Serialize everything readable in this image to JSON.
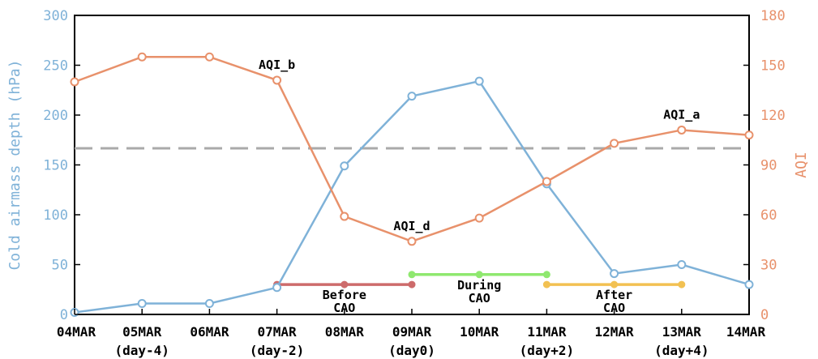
{
  "chart_data": {
    "type": "line",
    "categories": [
      "04MAR",
      "05MAR",
      "06MAR",
      "07MAR",
      "08MAR",
      "09MAR",
      "10MAR",
      "11MAR",
      "12MAR",
      "13MAR",
      "14MAR"
    ],
    "x_sublabels": [
      "",
      "(day-4)",
      "",
      "(day-2)",
      "",
      "(day0)",
      "",
      "(day+2)",
      "",
      "(day+4)",
      ""
    ],
    "ylabel_left": "Cold airmass depth (hPa)",
    "ylabel_right": "AQI",
    "ylim_left": [
      0,
      300
    ],
    "yticks_left": [
      0,
      50,
      100,
      150,
      200,
      250,
      300
    ],
    "ylim_right": [
      0,
      180
    ],
    "yticks_right": [
      0,
      30,
      60,
      90,
      120,
      150,
      180
    ],
    "colors": {
      "depth": "#7fb2d8",
      "aqi": "#e8916b",
      "threshold": "#aaaaaa",
      "before": "#cd6b6b",
      "during": "#8fe86f",
      "after": "#f2c152"
    },
    "series": [
      {
        "key": "depth",
        "axis": "left",
        "values": [
          2,
          11,
          11,
          27,
          149,
          219,
          234,
          131,
          41,
          50,
          30
        ]
      },
      {
        "key": "aqi",
        "axis": "right",
        "values": [
          140,
          155,
          155,
          141,
          59,
          44,
          58,
          80,
          103,
          111,
          108
        ]
      }
    ],
    "threshold_aqi": 100,
    "periods": [
      {
        "key": "before",
        "label1": "Before",
        "label2": "CAO",
        "start": 3,
        "end": 5,
        "aqi": 18
      },
      {
        "key": "during",
        "label1": "During",
        "label2": "CAO",
        "start": 5,
        "end": 7,
        "aqi": 24
      },
      {
        "key": "after",
        "label1": "After",
        "label2": "CAO",
        "start": 7,
        "end": 9,
        "aqi": 18
      }
    ],
    "annotations": [
      {
        "text": "AQI_b",
        "index": 3
      },
      {
        "text": "AQI_d",
        "index": 5
      },
      {
        "text": "AQI_a",
        "index": 9
      }
    ]
  }
}
